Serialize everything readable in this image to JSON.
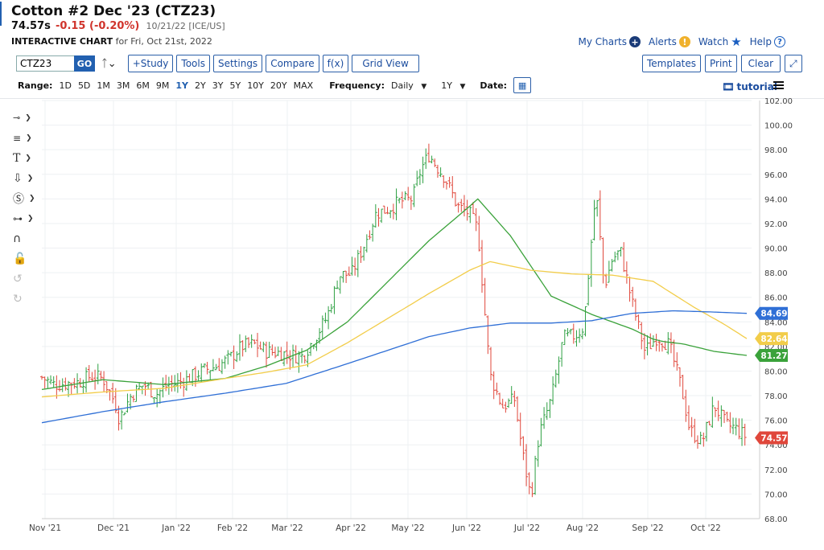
{
  "header": {
    "title": "Cotton #2 Dec '23 (CTZ23)",
    "price": "74.57s",
    "change": "-0.15 (-0.20%)",
    "meta": "10/21/22 [ICE/US]",
    "chart_label": "INTERACTIVE CHART",
    "chart_for": "for Fri, Oct 21st, 2022"
  },
  "top_links": {
    "my_charts": "My Charts",
    "alerts": "Alerts",
    "watch": "Watch",
    "help": "Help"
  },
  "toolbar": {
    "symbol_value": "CTZ23",
    "go_label": "GO",
    "study_label": "+Study",
    "tools_label": "Tools",
    "settings_label": "Settings",
    "compare_label": "Compare",
    "fx_label": "f(x)",
    "gridview_label": "Grid View",
    "templates_label": "Templates",
    "print_label": "Print",
    "clear_label": "Clear"
  },
  "range_bar": {
    "range_label": "Range:",
    "ranges": [
      "1D",
      "5D",
      "1M",
      "3M",
      "6M",
      "9M",
      "1Y",
      "2Y",
      "3Y",
      "5Y",
      "10Y",
      "20Y",
      "MAX"
    ],
    "active_range": "1Y",
    "frequency_label": "Frequency:",
    "frequency_value": "Daily",
    "period_value": "1Y",
    "date_label": "Date:",
    "tutorial_label": "tutorial"
  },
  "colors": {
    "up": "#2ea043",
    "down": "#e0473b",
    "ma_green": "#3aa23a",
    "ma_yellow": "#f2cd4a",
    "ma_blue": "#2f6fd6",
    "last_price_tag": "#e0473b",
    "accent": "#2260b0"
  },
  "chart_data": {
    "type": "line",
    "ylim": [
      68,
      102
    ],
    "y_ticks": [
      "102.00",
      "100.00",
      "98.00",
      "96.00",
      "94.00",
      "92.00",
      "90.00",
      "88.00",
      "86.00",
      "84.00",
      "82.00",
      "80.00",
      "78.00",
      "76.00",
      "74.00",
      "72.00",
      "70.00",
      "68.00"
    ],
    "x_labels": [
      "Nov '21",
      "Dec '21",
      "Jan '22",
      "Feb '22",
      "Mar '22",
      "Apr '22",
      "May '22",
      "Jun '22",
      "Jul '22",
      "Aug '22",
      "Sep '22",
      "Oct '22"
    ],
    "series": [
      {
        "role": "price_ohlc",
        "values": [
          [
            0,
            79.5
          ],
          [
            6,
            78.9
          ],
          [
            12,
            79.0
          ],
          [
            18,
            79.1
          ],
          [
            24,
            79.6
          ],
          [
            30,
            79.4
          ],
          [
            36,
            77.4
          ],
          [
            38,
            76.1
          ],
          [
            44,
            78.1
          ],
          [
            50,
            78.9
          ],
          [
            56,
            78.1
          ],
          [
            62,
            78.9
          ],
          [
            66,
            79.0
          ],
          [
            72,
            79.4
          ],
          [
            80,
            80.1
          ],
          [
            86,
            80.4
          ],
          [
            92,
            81.0
          ],
          [
            98,
            82.0
          ],
          [
            104,
            82.2
          ],
          [
            110,
            81.6
          ],
          [
            116,
            81.5
          ],
          [
            122,
            81.3
          ],
          [
            128,
            81.2
          ],
          [
            134,
            82.7
          ],
          [
            140,
            84.4
          ],
          [
            146,
            87.8
          ],
          [
            152,
            87.9
          ],
          [
            158,
            90.2
          ],
          [
            164,
            92.8
          ],
          [
            170,
            93.2
          ],
          [
            176,
            93.8
          ],
          [
            182,
            94.0
          ],
          [
            186,
            96.4
          ],
          [
            190,
            97.6
          ],
          [
            194,
            96.6
          ],
          [
            198,
            95.7
          ],
          [
            204,
            93.4
          ],
          [
            210,
            92.8
          ],
          [
            214,
            91.5
          ],
          [
            220,
            79.7
          ],
          [
            226,
            77.1
          ],
          [
            232,
            77.7
          ],
          [
            236,
            73.3
          ],
          [
            240,
            69.7
          ],
          [
            244,
            74.8
          ],
          [
            250,
            77.7
          ],
          [
            256,
            82.7
          ],
          [
            262,
            82.9
          ],
          [
            266,
            83.6
          ],
          [
            272,
            94.8
          ],
          [
            276,
            86.8
          ],
          [
            280,
            89.1
          ],
          [
            284,
            89.8
          ],
          [
            290,
            85.4
          ],
          [
            296,
            81.6
          ],
          [
            302,
            82.8
          ],
          [
            308,
            82.1
          ],
          [
            314,
            78.6
          ],
          [
            318,
            75.2
          ],
          [
            324,
            74.2
          ],
          [
            330,
            77.2
          ],
          [
            336,
            75.6
          ],
          [
            340,
            75.4
          ],
          [
            346,
            74.6
          ]
        ]
      },
      {
        "role": "ma_short",
        "values": [
          [
            0,
            78.5
          ],
          [
            30,
            79.3
          ],
          [
            60,
            78.9
          ],
          [
            90,
            79.4
          ],
          [
            110,
            80.4
          ],
          [
            130,
            81.7
          ],
          [
            150,
            84.0
          ],
          [
            170,
            87.3
          ],
          [
            190,
            90.6
          ],
          [
            210,
            93.4
          ],
          [
            214,
            94.0
          ],
          [
            230,
            91.0
          ],
          [
            250,
            86.1
          ],
          [
            270,
            84.6
          ],
          [
            290,
            83.4
          ],
          [
            300,
            82.6
          ],
          [
            305,
            82.4
          ],
          [
            315,
            82.2
          ],
          [
            330,
            81.6
          ],
          [
            346,
            81.27
          ]
        ]
      },
      {
        "role": "ma_mid",
        "values": [
          [
            0,
            77.9
          ],
          [
            30,
            78.3
          ],
          [
            60,
            78.6
          ],
          [
            90,
            79.4
          ],
          [
            110,
            79.9
          ],
          [
            130,
            80.5
          ],
          [
            150,
            82.3
          ],
          [
            170,
            84.3
          ],
          [
            190,
            86.3
          ],
          [
            210,
            88.2
          ],
          [
            220,
            88.9
          ],
          [
            240,
            88.2
          ],
          [
            260,
            87.9
          ],
          [
            280,
            87.8
          ],
          [
            300,
            87.3
          ],
          [
            320,
            85.2
          ],
          [
            335,
            83.8
          ],
          [
            346,
            82.64
          ]
        ]
      },
      {
        "role": "ma_long",
        "values": [
          [
            0,
            75.8
          ],
          [
            30,
            76.7
          ],
          [
            60,
            77.5
          ],
          [
            90,
            78.2
          ],
          [
            120,
            79.0
          ],
          [
            150,
            80.6
          ],
          [
            170,
            81.7
          ],
          [
            190,
            82.8
          ],
          [
            210,
            83.5
          ],
          [
            230,
            83.9
          ],
          [
            250,
            83.9
          ],
          [
            270,
            84.1
          ],
          [
            290,
            84.7
          ],
          [
            310,
            84.9
          ],
          [
            330,
            84.8
          ],
          [
            346,
            84.69
          ]
        ]
      }
    ],
    "price_tags": [
      "84.69",
      "82.64",
      "81.27",
      "74.57"
    ],
    "grid": true
  }
}
